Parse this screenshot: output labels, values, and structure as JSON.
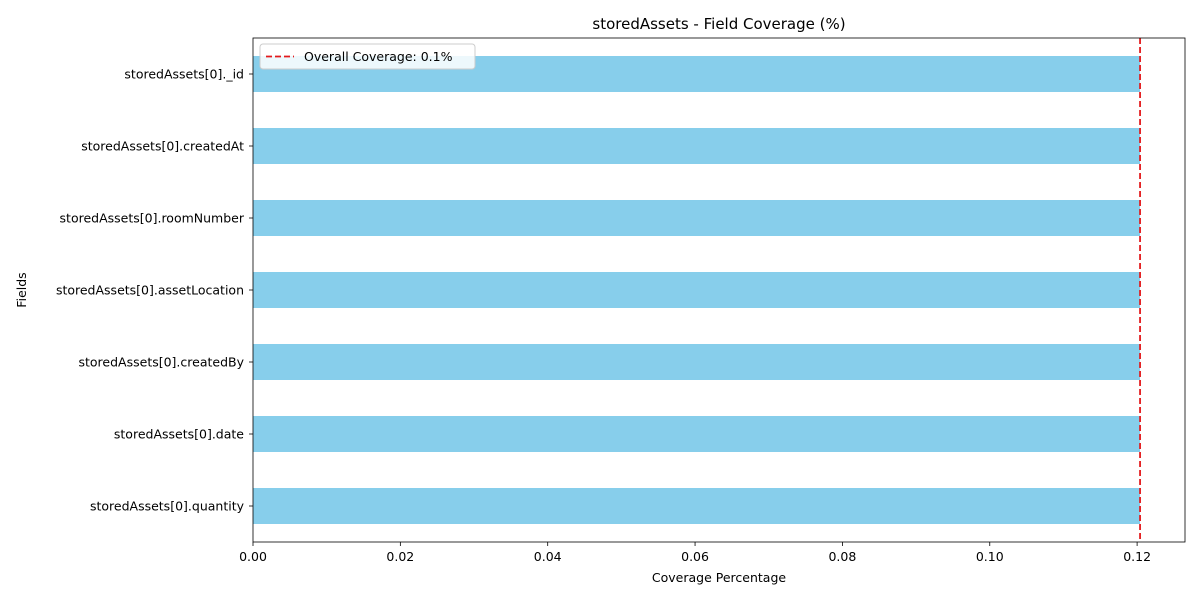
{
  "chart_data": {
    "type": "bar",
    "orientation": "horizontal",
    "title": "storedAssets - Field Coverage (%)",
    "xlabel": "Coverage Percentage",
    "ylabel": "Fields",
    "categories": [
      "storedAssets[0]._id",
      "storedAssets[0].createdAt",
      "storedAssets[0].roomNumber",
      "storedAssets[0].assetLocation",
      "storedAssets[0].createdBy",
      "storedAssets[0].date",
      "storedAssets[0].quantity"
    ],
    "values": [
      0.1204,
      0.1204,
      0.1204,
      0.1204,
      0.1204,
      0.1204,
      0.1204
    ],
    "xlim": [
      0,
      0.1265
    ],
    "xticks": [
      0.0,
      0.02,
      0.04,
      0.06,
      0.08,
      0.1,
      0.12
    ],
    "xtick_labels": [
      "0.00",
      "0.02",
      "0.04",
      "0.06",
      "0.08",
      "0.10",
      "0.12"
    ],
    "reference_line": {
      "value": 0.1204,
      "label": "Overall Coverage: 0.1%",
      "color": "#e31a1c",
      "style": "dashed"
    },
    "bar_color": "#87ceeb",
    "grid": false,
    "legend": {
      "position": "top-left"
    }
  }
}
